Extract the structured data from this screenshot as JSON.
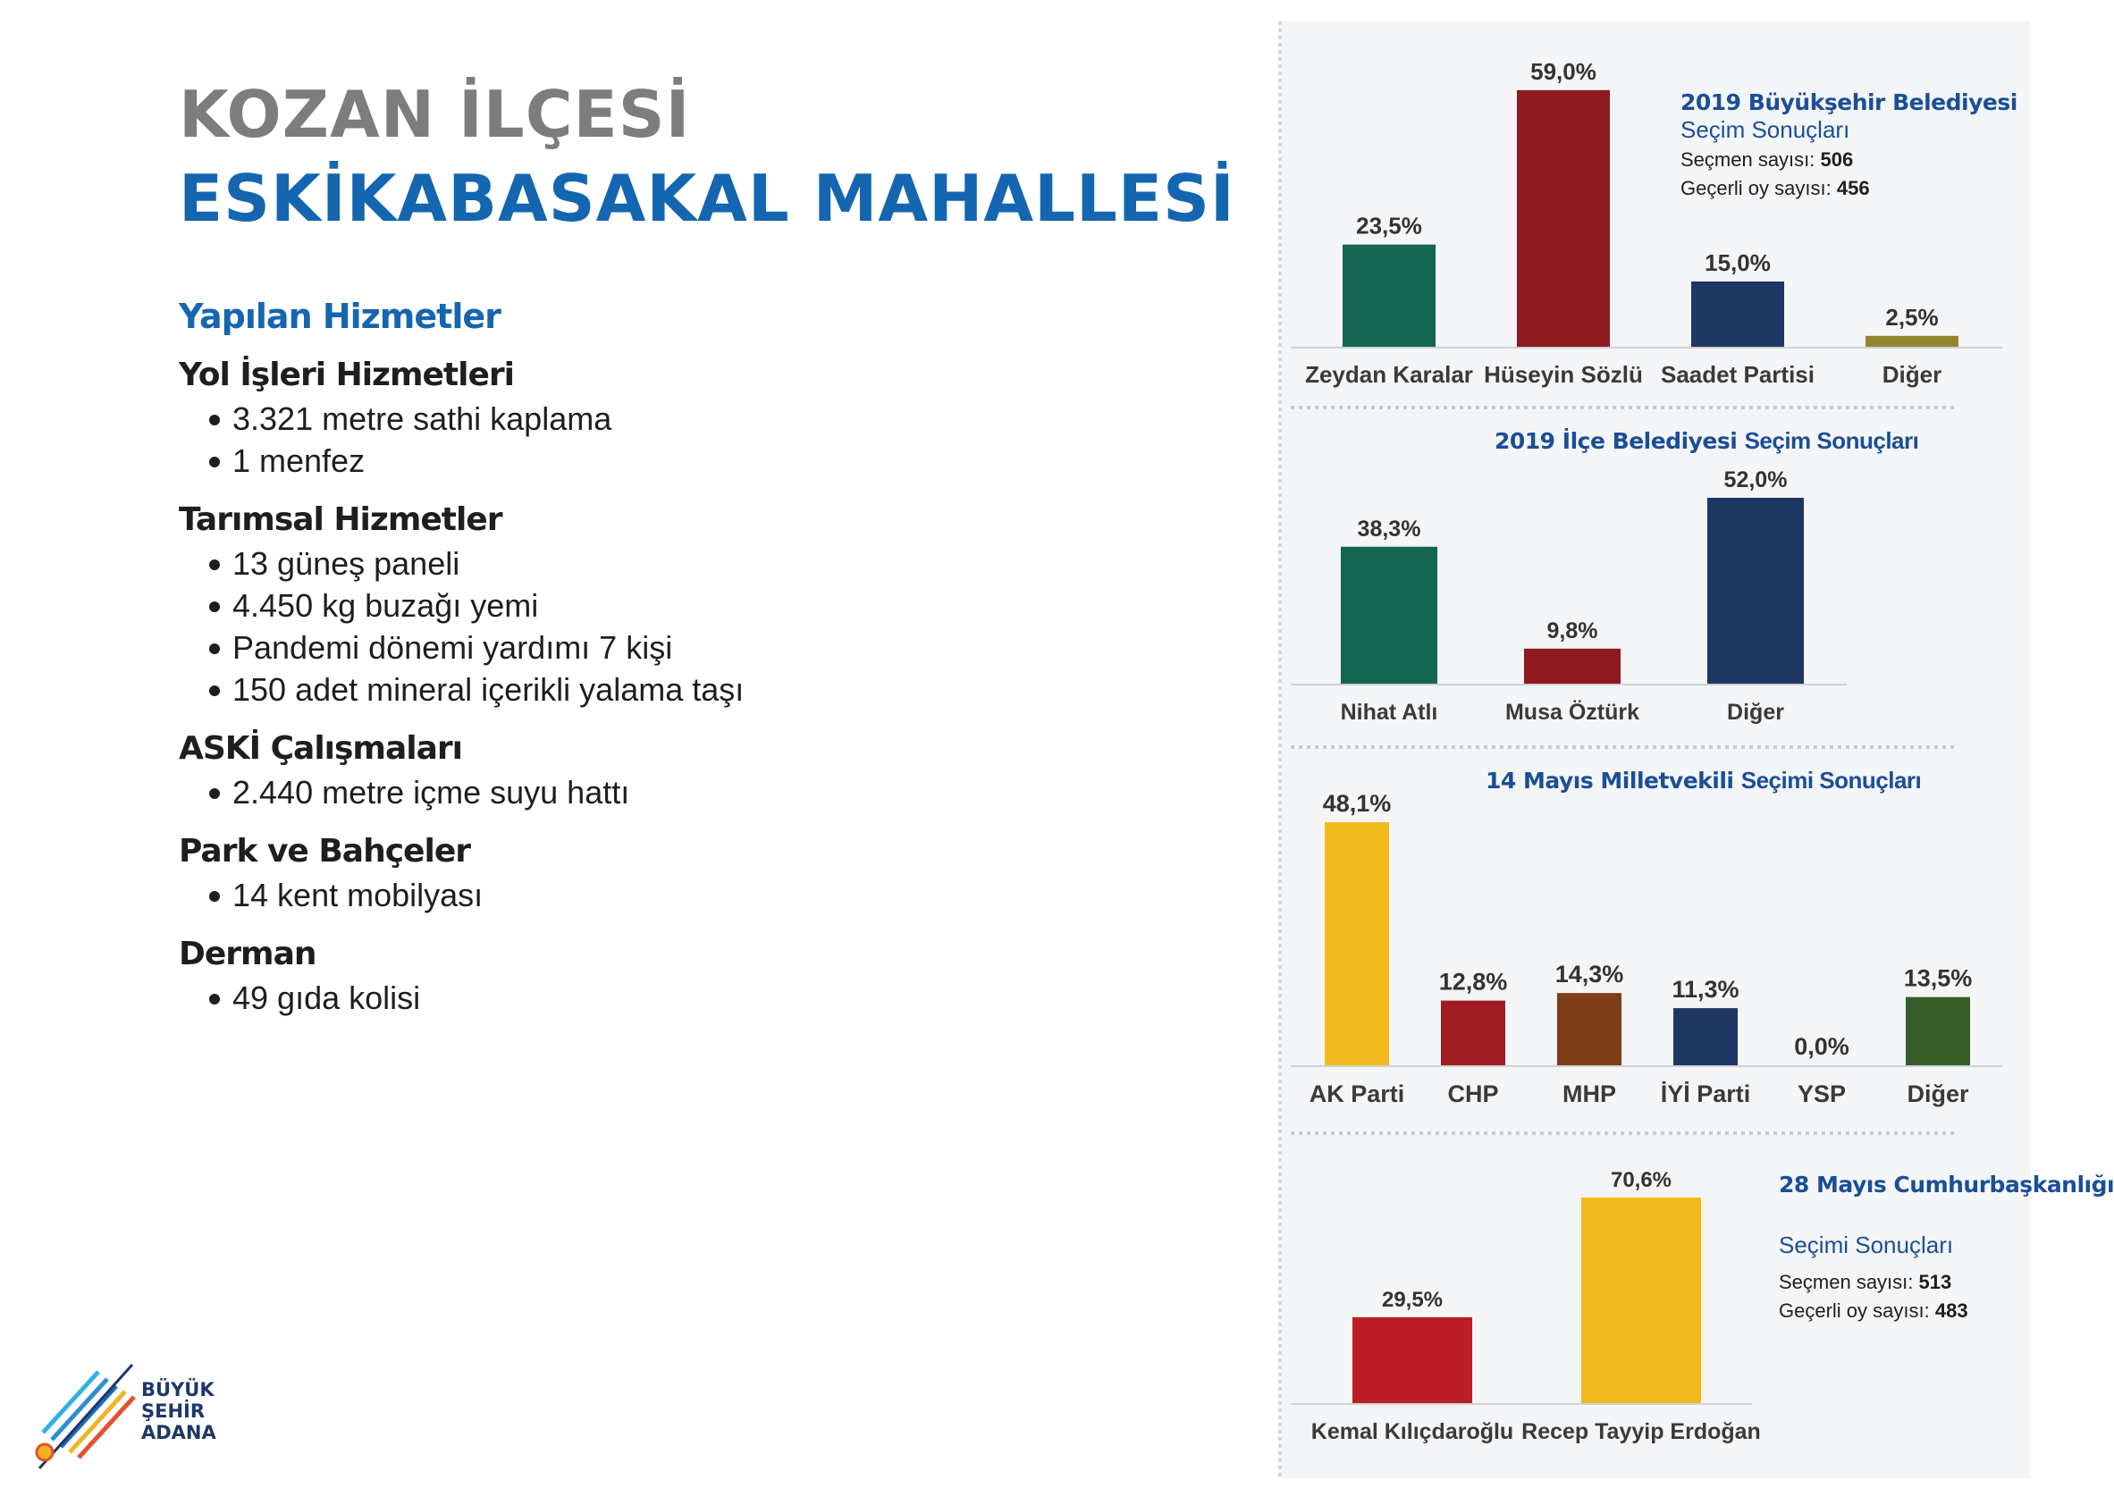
{
  "header": {
    "district": "KOZAN İLÇESİ",
    "neighborhood": "ESKİKABASAKAL MAHALLESİ"
  },
  "services": {
    "title": "Yapılan Hizmetler",
    "groups": [
      {
        "title": "Yol İşleri Hizmetleri",
        "items": [
          "3.321 metre sathi kaplama",
          "1 menfez"
        ]
      },
      {
        "title": "Tarımsal Hizmetler",
        "items": [
          "13 güneş paneli",
          "4.450 kg buzağı yemi",
          "Pandemi dönemi yardımı 7 kişi",
          "150 adet mineral içerikli yalama taşı"
        ]
      },
      {
        "title": "ASKİ Çalışmaları",
        "items": [
          "2.440 metre içme suyu hattı"
        ]
      },
      {
        "title": "Park ve Bahçeler",
        "items": [
          "14 kent mobilyası"
        ]
      },
      {
        "title": "Derman",
        "items": [
          "49 gıda kolisi"
        ]
      }
    ]
  },
  "logo": {
    "line1": "BÜYÜK",
    "line2": "ŞEHİR",
    "line3": "ADANA"
  },
  "colors": {
    "green": "#136650",
    "red": "#8e1a1f",
    "navy": "#1e3663",
    "olive": "#948630",
    "yellow": "#f3b91a",
    "chp_red": "#a01b22",
    "brown": "#7e3d17",
    "dark_green": "#365c27",
    "kk_red": "#bc1e26",
    "title_blue": "#1a4f97"
  },
  "chart_data": [
    {
      "type": "bar",
      "title": "2019 Büyükşehir Belediyesi",
      "subtitle": "Seçim Sonuçları",
      "voters_label": "Seçmen sayısı:",
      "voters": "506",
      "valid_label": "Geçerli oy sayısı:",
      "valid": "456",
      "categories": [
        "Zeydan Karalar",
        "Hüseyin Sözlü",
        "Saadet Partisi",
        "Diğer"
      ],
      "values": [
        23.5,
        59.0,
        15.0,
        2.5
      ],
      "labels": [
        "23,5%",
        "59,0%",
        "15,0%",
        "2,5%"
      ],
      "colors": [
        "#136650",
        "#8e1a1f",
        "#1e3663",
        "#948630"
      ],
      "ylim": [
        0,
        60
      ]
    },
    {
      "type": "bar",
      "title": "2019 İlçe Belediyesi",
      "subtitle": "Seçim Sonuçları",
      "categories": [
        "Nihat Atlı",
        "Musa Öztürk",
        "Diğer"
      ],
      "values": [
        38.3,
        9.8,
        52.0
      ],
      "labels": [
        "38,3%",
        "9,8%",
        "52,0%"
      ],
      "colors": [
        "#136650",
        "#8e1a1f",
        "#1e3663"
      ],
      "ylim": [
        0,
        52
      ]
    },
    {
      "type": "bar",
      "title": "14 Mayıs Milletvekili",
      "subtitle": "Seçimi Sonuçları",
      "categories": [
        "AK Parti",
        "CHP",
        "MHP",
        "İYİ Parti",
        "YSP",
        "Diğer"
      ],
      "values": [
        48.1,
        12.8,
        14.3,
        11.3,
        0.0,
        13.5
      ],
      "labels": [
        "48,1%",
        "12,8%",
        "14,3%",
        "11,3%",
        "0,0%",
        "13,5%"
      ],
      "colors": [
        "#f3b91a",
        "#a01b22",
        "#7e3d17",
        "#1e3663",
        "#1e3663",
        "#365c27"
      ],
      "ylim": [
        0,
        48.1
      ]
    },
    {
      "type": "bar",
      "title": "28 Mayıs Cumhurbaşkanlığı",
      "subtitle": "Seçimi Sonuçları",
      "voters_label": "Seçmen sayısı:",
      "voters": "513",
      "valid_label": "Geçerli oy sayısı:",
      "valid": "483",
      "categories": [
        "Kemal Kılıçdaroğlu",
        "Recep Tayyip Erdoğan"
      ],
      "values": [
        29.5,
        70.6
      ],
      "labels": [
        "29,5%",
        "70,6%"
      ],
      "colors": [
        "#bc1e26",
        "#f3b91a"
      ],
      "ylim": [
        0,
        70.6
      ]
    }
  ]
}
